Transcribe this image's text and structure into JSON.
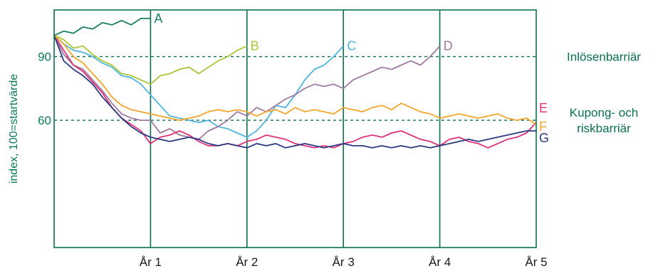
{
  "chart_data": {
    "type": "line",
    "title": "",
    "xlabel": "",
    "ylabel": "index, 100=startvärde",
    "xlim": [
      0,
      5
    ],
    "ylim": [
      0,
      112
    ],
    "x_ticks": [
      {
        "value": 1,
        "label": "År 1"
      },
      {
        "value": 2,
        "label": "År 2"
      },
      {
        "value": 3,
        "label": "År 3"
      },
      {
        "value": 4,
        "label": "År 4"
      },
      {
        "value": 5,
        "label": "År 5"
      }
    ],
    "y_ticks": [
      {
        "value": 90,
        "label": "90"
      },
      {
        "value": 60,
        "label": "60"
      }
    ],
    "barriers": [
      {
        "value": 90,
        "label_lines": [
          "Inlösenbarriär"
        ]
      },
      {
        "value": 60,
        "label_lines": [
          "Kupong- och",
          "riskbarriär"
        ]
      }
    ],
    "colors": {
      "axis": "#0b6e52",
      "grid": "#0b6e52",
      "ytext": "#0b7a5a"
    },
    "series": [
      {
        "name": "A",
        "color": "#1a7f5e",
        "x": [
          0,
          0.1,
          0.2,
          0.3,
          0.4,
          0.5,
          0.6,
          0.7,
          0.8,
          0.9,
          1.0
        ],
        "y": [
          100,
          102,
          101,
          104,
          103,
          106,
          105,
          107,
          105,
          108,
          108
        ]
      },
      {
        "name": "B",
        "color": "#a6c739",
        "x": [
          0,
          0.1,
          0.2,
          0.3,
          0.4,
          0.5,
          0.6,
          0.7,
          0.8,
          0.9,
          1.0,
          1.1,
          1.2,
          1.3,
          1.4,
          1.5,
          1.6,
          1.7,
          1.8,
          1.9,
          2.0
        ],
        "y": [
          100,
          98,
          94,
          95,
          91,
          88,
          86,
          82,
          81,
          79,
          77,
          81,
          82,
          84,
          85,
          82,
          85,
          88,
          90,
          93,
          95
        ]
      },
      {
        "name": "C",
        "color": "#4fb5dc",
        "x": [
          0,
          0.1,
          0.2,
          0.3,
          0.4,
          0.5,
          0.6,
          0.7,
          0.8,
          0.9,
          1.0,
          1.1,
          1.2,
          1.3,
          1.4,
          1.5,
          1.6,
          1.7,
          1.8,
          1.9,
          2.0,
          2.1,
          2.2,
          2.3,
          2.4,
          2.5,
          2.6,
          2.7,
          2.8,
          2.9,
          3.0
        ],
        "y": [
          100,
          96,
          93,
          92,
          90,
          87,
          85,
          81,
          80,
          77,
          72,
          67,
          62,
          61,
          60,
          59,
          60,
          57,
          56,
          54,
          52,
          55,
          60,
          67,
          66,
          72,
          79,
          84,
          86,
          90,
          95
        ]
      },
      {
        "name": "D",
        "color": "#a07aa0",
        "x": [
          0,
          0.1,
          0.2,
          0.3,
          0.4,
          0.5,
          0.6,
          0.7,
          0.8,
          0.9,
          1.0,
          1.1,
          1.2,
          1.3,
          1.4,
          1.5,
          1.6,
          1.7,
          1.8,
          1.9,
          2.0,
          2.1,
          2.2,
          2.3,
          2.4,
          2.5,
          2.6,
          2.7,
          2.8,
          2.9,
          3.0,
          3.1,
          3.2,
          3.3,
          3.4,
          3.5,
          3.6,
          3.7,
          3.8,
          3.9,
          4.0
        ],
        "y": [
          100,
          91,
          86,
          84,
          79,
          74,
          68,
          63,
          61,
          60,
          60,
          54,
          56,
          53,
          52,
          51,
          55,
          57,
          60,
          64,
          62,
          66,
          64,
          67,
          70,
          72,
          75,
          77,
          76,
          77,
          75,
          79,
          81,
          83,
          85,
          84,
          86,
          88,
          86,
          90,
          95
        ]
      },
      {
        "name": "E",
        "color": "#e0307a",
        "x": [
          0,
          0.1,
          0.2,
          0.3,
          0.4,
          0.5,
          0.6,
          0.7,
          0.8,
          0.9,
          1.0,
          1.1,
          1.2,
          1.3,
          1.4,
          1.5,
          1.6,
          1.7,
          1.8,
          1.9,
          2.0,
          2.1,
          2.2,
          2.3,
          2.4,
          2.5,
          2.6,
          2.7,
          2.8,
          2.9,
          3.0,
          3.1,
          3.2,
          3.3,
          3.4,
          3.5,
          3.6,
          3.7,
          3.8,
          3.9,
          4.0,
          4.1,
          4.2,
          4.3,
          4.4,
          4.5,
          4.6,
          4.7,
          4.8,
          4.9,
          5.0
        ],
        "y": [
          100,
          93,
          86,
          83,
          78,
          73,
          66,
          61,
          58,
          55,
          49,
          52,
          53,
          55,
          53,
          50,
          48,
          48,
          49,
          48,
          50,
          51,
          53,
          52,
          51,
          49,
          48,
          47,
          48,
          47,
          49,
          50,
          52,
          53,
          52,
          54,
          55,
          53,
          51,
          50,
          48,
          51,
          52,
          50,
          49,
          47,
          49,
          51,
          52,
          54,
          59
        ]
      },
      {
        "name": "F",
        "color": "#f3a52c",
        "x": [
          0,
          0.1,
          0.2,
          0.3,
          0.4,
          0.5,
          0.6,
          0.7,
          0.8,
          0.9,
          1.0,
          1.1,
          1.2,
          1.3,
          1.4,
          1.5,
          1.6,
          1.7,
          1.8,
          1.9,
          2.0,
          2.1,
          2.2,
          2.3,
          2.4,
          2.5,
          2.6,
          2.7,
          2.8,
          2.9,
          3.0,
          3.1,
          3.2,
          3.3,
          3.4,
          3.5,
          3.6,
          3.7,
          3.8,
          3.9,
          4.0,
          4.1,
          4.2,
          4.3,
          4.4,
          4.5,
          4.6,
          4.7,
          4.8,
          4.9,
          5.0
        ],
        "y": [
          100,
          96,
          90,
          87,
          82,
          77,
          71,
          67,
          65,
          64,
          63,
          62,
          61,
          60,
          61,
          62,
          64,
          65,
          64,
          65,
          64,
          62,
          64,
          65,
          63,
          66,
          64,
          65,
          64,
          63,
          66,
          65,
          64,
          66,
          67,
          65,
          68,
          66,
          64,
          63,
          61,
          62,
          63,
          62,
          61,
          62,
          63,
          61,
          60,
          61,
          58
        ]
      },
      {
        "name": "G",
        "color": "#2b3a80",
        "x": [
          0,
          0.1,
          0.2,
          0.3,
          0.4,
          0.5,
          0.6,
          0.7,
          0.8,
          0.9,
          1.0,
          1.1,
          1.2,
          1.3,
          1.4,
          1.5,
          1.6,
          1.7,
          1.8,
          1.9,
          2.0,
          2.1,
          2.2,
          2.3,
          2.4,
          2.5,
          2.6,
          2.7,
          2.8,
          2.9,
          3.0,
          3.1,
          3.2,
          3.3,
          3.4,
          3.5,
          3.6,
          3.7,
          3.8,
          3.9,
          4.0,
          4.1,
          4.2,
          4.3,
          4.4,
          4.5,
          4.6,
          4.7,
          4.8,
          4.9,
          5.0
        ],
        "y": [
          100,
          88,
          84,
          81,
          77,
          71,
          66,
          61,
          57,
          54,
          52,
          51,
          50,
          51,
          52,
          51,
          49,
          48,
          49,
          48,
          47,
          49,
          48,
          49,
          47,
          48,
          49,
          48,
          47,
          48,
          49,
          48,
          48,
          47,
          48,
          47,
          48,
          47,
          48,
          47,
          48,
          49,
          50,
          51,
          50,
          51,
          52,
          53,
          54,
          55,
          55
        ]
      }
    ]
  }
}
